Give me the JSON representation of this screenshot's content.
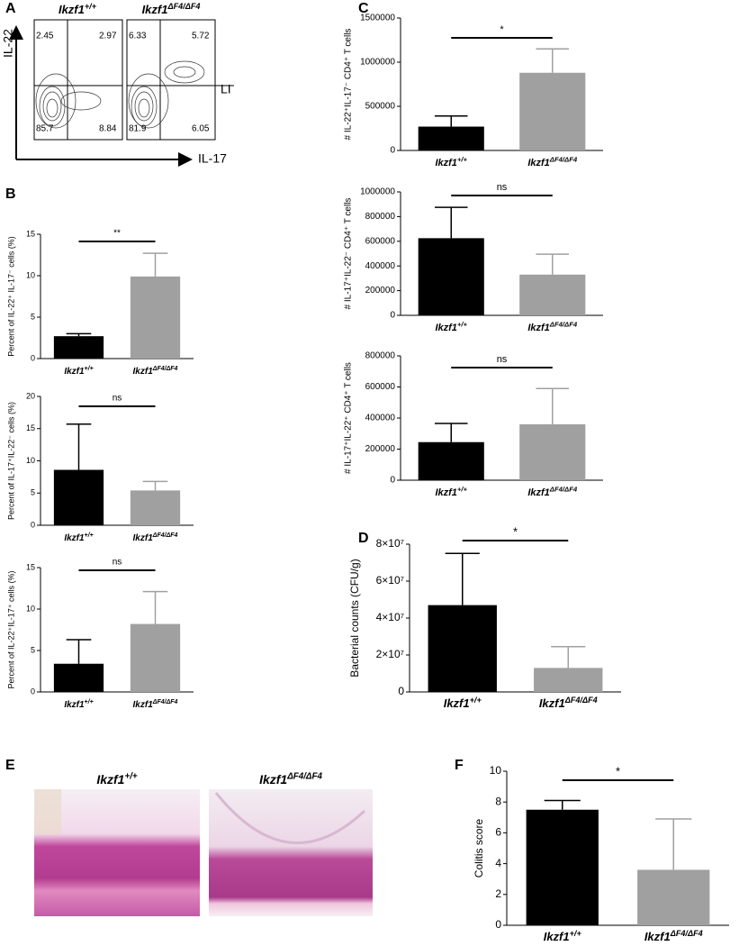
{
  "panel_labels": [
    "A",
    "B",
    "C",
    "D",
    "E",
    "F"
  ],
  "flow": {
    "y_label": "IL-22",
    "x_label": "IL-17",
    "tissue": "LI",
    "plots": [
      {
        "title": "Ikzf1+/+",
        "quadrants": [
          2.45,
          2.97,
          85.7,
          8.84
        ]
      },
      {
        "title": "Ikzf1ΔF4/ΔF4",
        "quadrants": [
          6.33,
          5.72,
          81.9,
          6.05
        ]
      }
    ]
  },
  "histology": {
    "titles": [
      "Ikzf1+/+",
      "Ikzf1ΔF4/ΔF4"
    ]
  },
  "chart_data": [
    {
      "type": "bar",
      "ylabel": "Percent of IL-22⁺ IL-17⁻ cells (%)",
      "categories": [
        "Ikzf1+/+",
        "Ikzf1ΔF4/ΔF4"
      ],
      "values": [
        2.7,
        9.9
      ],
      "errors": [
        0.3,
        2.8
      ],
      "colors": [
        "#000000",
        "#a0a0a0"
      ],
      "ylim": [
        0,
        15
      ],
      "yticks": [
        0,
        5,
        10,
        15
      ],
      "significance": "**"
    },
    {
      "type": "bar",
      "ylabel": "Percent of IL-17⁺IL-22⁻ cells (%)",
      "categories": [
        "Ikzf1+/+",
        "Ikzf1ΔF4/ΔF4"
      ],
      "values": [
        8.6,
        5.4
      ],
      "errors": [
        7.1,
        1.4
      ],
      "colors": [
        "#000000",
        "#a0a0a0"
      ],
      "ylim": [
        0,
        20
      ],
      "yticks": [
        0,
        5,
        10,
        15,
        20
      ],
      "significance": "ns"
    },
    {
      "type": "bar",
      "ylabel": "Percent of IL-22⁺IL-17⁺ cells (%)",
      "categories": [
        "Ikzf1+/+",
        "Ikzf1ΔF4/ΔF4"
      ],
      "values": [
        3.4,
        8.2
      ],
      "errors": [
        2.9,
        3.9
      ],
      "colors": [
        "#000000",
        "#a0a0a0"
      ],
      "ylim": [
        0,
        15
      ],
      "yticks": [
        0,
        5,
        10,
        15
      ],
      "significance": "ns"
    },
    {
      "type": "bar",
      "ylabel": "# IL-22⁺IL-17⁻ CD4⁺ T cells",
      "categories": [
        "Ikzf1+/+",
        "Ikzf1ΔF4/ΔF4"
      ],
      "values": [
        270000,
        880000
      ],
      "errors": [
        120000,
        270000
      ],
      "colors": [
        "#000000",
        "#a0a0a0"
      ],
      "ylim": [
        0,
        1500000
      ],
      "yticks": [
        0,
        500000,
        1000000,
        1500000
      ],
      "significance": "*"
    },
    {
      "type": "bar",
      "ylabel": "# IL-17⁺IL-22⁻ CD4⁺ T cells",
      "categories": [
        "Ikzf1+/+",
        "Ikzf1ΔF4/ΔF4"
      ],
      "values": [
        625000,
        330000
      ],
      "errors": [
        250000,
        165000
      ],
      "colors": [
        "#000000",
        "#a0a0a0"
      ],
      "ylim": [
        0,
        1000000
      ],
      "yticks": [
        0,
        200000,
        400000,
        600000,
        800000,
        1000000
      ],
      "significance": "ns"
    },
    {
      "type": "bar",
      "ylabel": "# IL-17⁺IL-22⁺ CD4⁺ T cells",
      "categories": [
        "Ikzf1+/+",
        "Ikzf1ΔF4/ΔF4"
      ],
      "values": [
        245000,
        360000
      ],
      "errors": [
        120000,
        230000
      ],
      "colors": [
        "#000000",
        "#a0a0a0"
      ],
      "ylim": [
        0,
        800000
      ],
      "yticks": [
        0,
        200000,
        400000,
        600000,
        800000
      ],
      "significance": "ns"
    },
    {
      "type": "bar",
      "ylabel": "Bacterial counts (CFU/g)",
      "categories": [
        "Ikzf1+/+",
        "Ikzf1ΔF4/ΔF4"
      ],
      "values": [
        47000000,
        13000000
      ],
      "errors": [
        28000000,
        11500000
      ],
      "colors": [
        "#000000",
        "#a0a0a0"
      ],
      "ylim": [
        0,
        80000000
      ],
      "yticks": [
        0,
        {
          "value": 20000000,
          "label": "2×10⁷"
        },
        {
          "value": 40000000,
          "label": "4×10⁷"
        },
        {
          "value": 60000000,
          "label": "6×10⁷"
        },
        {
          "value": 80000000,
          "label": "8×10⁷"
        }
      ],
      "significance": "*"
    },
    {
      "type": "bar",
      "ylabel": "Colitis score",
      "categories": [
        "Ikzf1+/+",
        "Ikzf1ΔF4/ΔF4"
      ],
      "values": [
        7.5,
        3.6
      ],
      "errors": [
        0.6,
        3.3
      ],
      "colors": [
        "#000000",
        "#a0a0a0"
      ],
      "ylim": [
        0,
        10
      ],
      "yticks": [
        0,
        2,
        4,
        6,
        8,
        10
      ],
      "significance": "*"
    }
  ]
}
